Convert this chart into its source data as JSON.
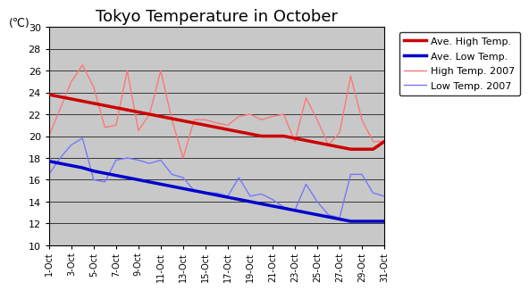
{
  "title": "Tokyo Temperature in October",
  "ylabel": "(℃)",
  "ylim": [
    10,
    30
  ],
  "yticks": [
    10,
    12,
    14,
    16,
    18,
    20,
    22,
    24,
    26,
    28,
    30
  ],
  "days": [
    1,
    2,
    3,
    4,
    5,
    6,
    7,
    8,
    9,
    10,
    11,
    12,
    13,
    14,
    15,
    16,
    17,
    18,
    19,
    20,
    21,
    22,
    23,
    24,
    25,
    26,
    27,
    28,
    29,
    30,
    31
  ],
  "xlabels": [
    "1-Oct",
    "3-Oct",
    "5-Oct",
    "7-Oct",
    "9-Oct",
    "11-Oct",
    "13-Oct",
    "15-Oct",
    "17-Oct",
    "19-Oct",
    "21-Oct",
    "23-Oct",
    "25-Oct",
    "27-Oct",
    "29-Oct",
    "31-Oct"
  ],
  "xlabel_days": [
    1,
    3,
    5,
    7,
    9,
    11,
    13,
    15,
    17,
    19,
    21,
    23,
    25,
    27,
    29,
    31
  ],
  "high_2007": [
    20.0,
    22.5,
    25.0,
    26.5,
    24.5,
    20.8,
    21.0,
    26.0,
    20.5,
    22.0,
    26.0,
    21.5,
    18.0,
    21.5,
    21.5,
    21.2,
    21.0,
    21.8,
    22.0,
    21.5,
    21.8,
    22.0,
    19.5,
    23.5,
    21.5,
    19.2,
    20.3,
    25.5,
    21.5,
    19.5,
    19.5
  ],
  "low_2007": [
    16.5,
    18.0,
    19.2,
    19.8,
    16.0,
    15.8,
    17.8,
    18.0,
    17.8,
    17.5,
    17.8,
    16.5,
    16.2,
    15.0,
    14.8,
    14.8,
    14.5,
    16.2,
    14.5,
    14.7,
    14.2,
    13.5,
    13.2,
    15.6,
    14.0,
    12.8,
    12.5,
    16.5,
    16.5,
    14.8,
    14.5
  ],
  "ave_high": [
    23.8,
    23.6,
    23.4,
    23.2,
    23.0,
    22.8,
    22.6,
    22.4,
    22.2,
    22.0,
    21.8,
    21.6,
    21.4,
    21.2,
    21.0,
    20.8,
    20.6,
    20.4,
    20.2,
    20.0,
    20.0,
    20.0,
    19.8,
    19.6,
    19.4,
    19.2,
    19.0,
    18.8,
    18.8,
    18.8,
    19.5
  ],
  "ave_low": [
    17.7,
    17.5,
    17.3,
    17.1,
    16.8,
    16.6,
    16.4,
    16.2,
    16.0,
    15.8,
    15.6,
    15.4,
    15.2,
    15.0,
    14.8,
    14.6,
    14.4,
    14.2,
    14.0,
    13.8,
    13.6,
    13.4,
    13.2,
    13.0,
    12.8,
    12.6,
    12.4,
    12.2,
    12.2,
    12.2,
    12.2
  ],
  "color_ave_high": "#cc0000",
  "color_ave_low": "#0000cc",
  "color_high_2007": "#ff7777",
  "color_low_2007": "#7777ff",
  "bg_color": "#c8c8c8",
  "fig_bg": "#ffffff",
  "legend_labels": [
    "Ave. High Temp.",
    "Ave. Low Temp.",
    "High Temp. 2007",
    "Low Temp. 2007"
  ],
  "title_fontsize": 13,
  "tick_fontsize": 8,
  "legend_fontsize": 8
}
